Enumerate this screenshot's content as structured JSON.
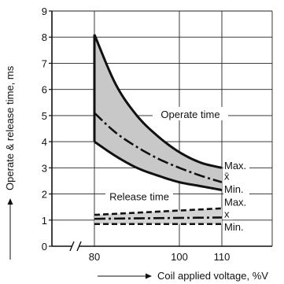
{
  "chart_data": {
    "type": "line",
    "xlabel": "Coil applied voltage, %V",
    "ylabel": "Operate & release time, ms",
    "xlim": [
      80,
      120
    ],
    "ylim": [
      0,
      9
    ],
    "x_ticks": [
      80,
      100,
      110
    ],
    "x_tick_labels": [
      "80",
      "100",
      "110"
    ],
    "y_ticks": [
      0,
      1,
      2,
      3,
      4,
      5,
      6,
      7,
      8,
      9
    ],
    "y_tick_labels": [
      "0",
      "1",
      "2",
      "3",
      "4",
      "5",
      "6",
      "7",
      "8",
      "9"
    ],
    "x_axis_break": true,
    "grid": true,
    "series": [
      {
        "name": "Max.",
        "group": "Operate time",
        "x": [
          80,
          85,
          90,
          95,
          100,
          105,
          110
        ],
        "values": [
          8.1,
          6.2,
          5.0,
          4.2,
          3.6,
          3.2,
          3.0
        ]
      },
      {
        "name": "x̄",
        "group": "Operate time",
        "x": [
          80,
          85,
          90,
          95,
          100,
          105,
          110
        ],
        "values": [
          5.1,
          4.35,
          3.8,
          3.35,
          3.0,
          2.7,
          2.45
        ]
      },
      {
        "name": "Min.",
        "group": "Operate time",
        "x": [
          80,
          85,
          90,
          95,
          100,
          105,
          110
        ],
        "values": [
          4.0,
          3.45,
          3.0,
          2.7,
          2.45,
          2.3,
          2.15
        ]
      },
      {
        "name": "Max.",
        "group": "Release time",
        "x": [
          80,
          110
        ],
        "values": [
          1.2,
          1.45
        ]
      },
      {
        "name": "x",
        "group": "Release time",
        "x": [
          80,
          110
        ],
        "values": [
          1.05,
          1.1
        ]
      },
      {
        "name": "Min.",
        "group": "Release time",
        "x": [
          80,
          110
        ],
        "values": [
          0.85,
          0.85
        ]
      }
    ],
    "annotations": [
      "Operate time",
      "Release time"
    ]
  }
}
